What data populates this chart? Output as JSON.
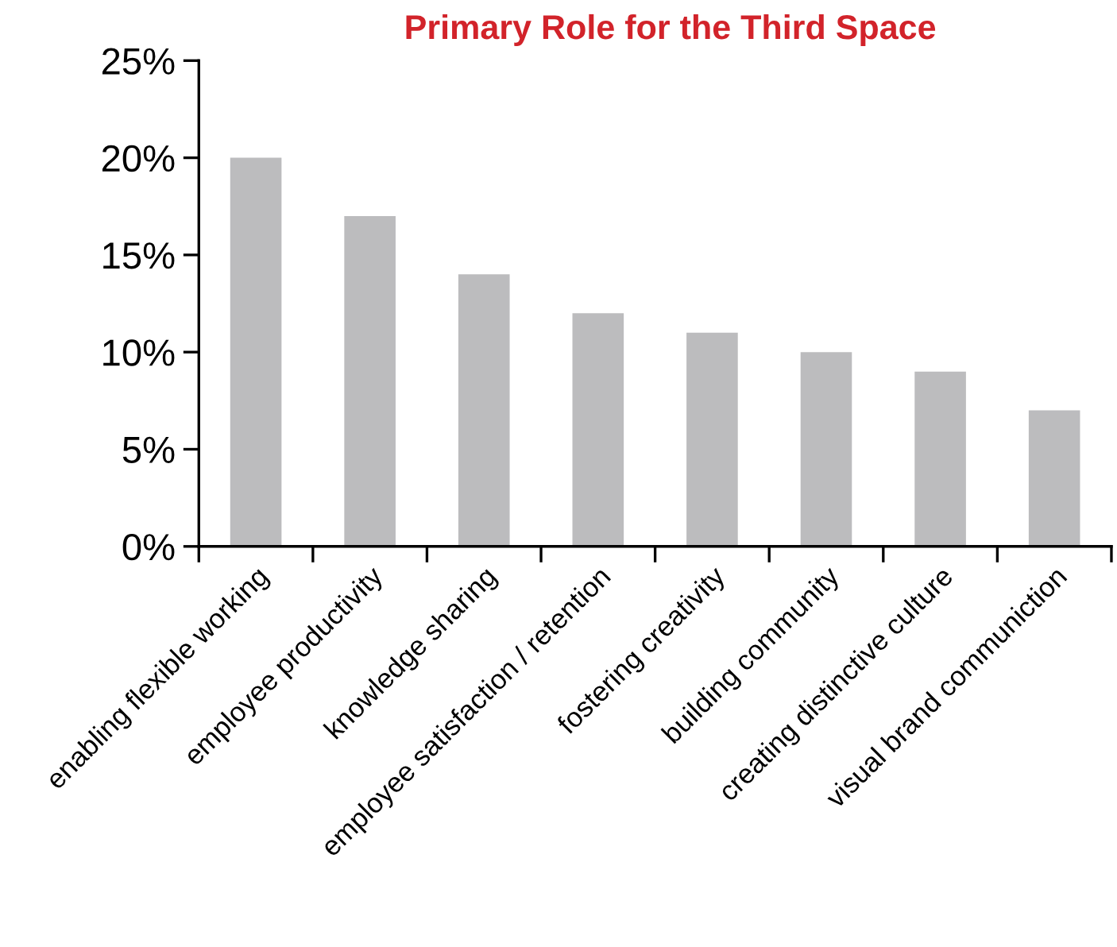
{
  "chart_data": {
    "type": "bar",
    "title": "Primary Role for the Third Space",
    "categories": [
      "enabling flexible working",
      "employee productivity",
      "knowledge sharing",
      "employee satisfaction / retention",
      "fostering creativity",
      "building community",
      "creating distinctive culture",
      "visual brand communiction"
    ],
    "values": [
      20,
      17,
      14,
      12,
      11,
      10,
      9,
      7
    ],
    "color": "#bcbcbe",
    "ylim": [
      0,
      25
    ],
    "yticks": [
      {
        "value": 0,
        "label": "0%"
      },
      {
        "value": 5,
        "label": "5%"
      },
      {
        "value": 10,
        "label": "10%"
      },
      {
        "value": 15,
        "label": "15%"
      },
      {
        "value": 20,
        "label": "20%"
      },
      {
        "value": 25,
        "label": "25%"
      }
    ],
    "grid": false,
    "legend": false
  }
}
